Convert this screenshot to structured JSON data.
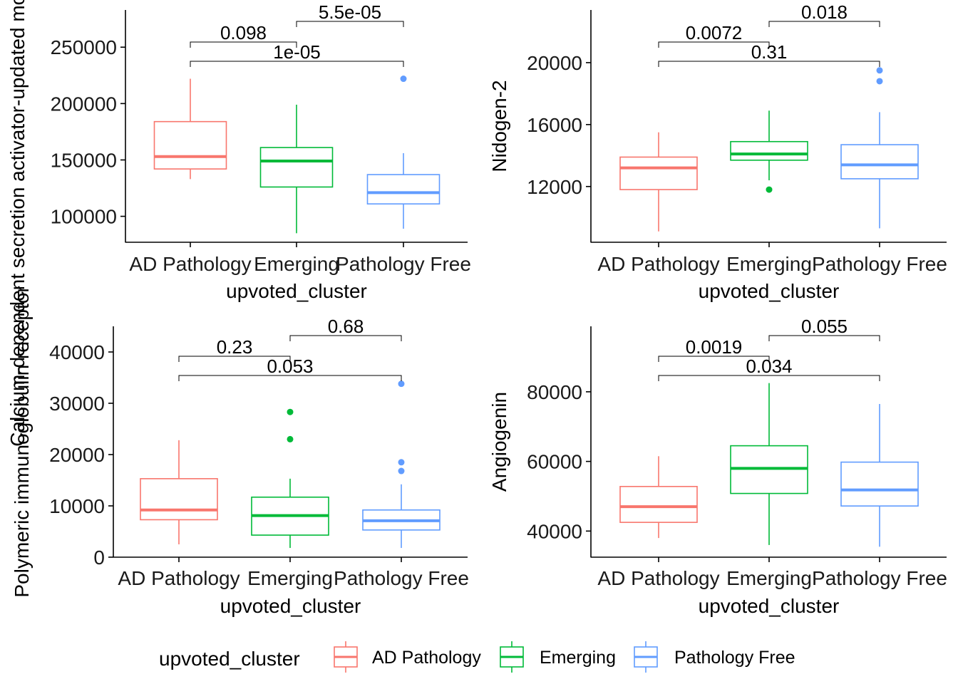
{
  "colors": {
    "AD Pathology": "#F8766D",
    "Emerging": "#00BA38",
    "Pathology Free": "#619CFF",
    "axis": "#000000"
  },
  "legend": {
    "title": "upvoted_cluster",
    "items": [
      "AD Pathology",
      "Emerging",
      "Pathology Free"
    ]
  },
  "chart_data": [
    {
      "type": "box",
      "xlabel": "upvoted_cluster",
      "ylabel": "Calcium-dependent secretion activator-updated modular calcium-binding",
      "categories": [
        "AD Pathology",
        "Emerging",
        "Pathology Free"
      ],
      "ylim": [
        77000,
        283000
      ],
      "yticks": [
        100000,
        150000,
        200000,
        250000
      ],
      "ytick_labels": [
        "100000",
        "150000",
        "200000",
        "250000"
      ],
      "boxes": [
        {
          "cat": "AD Pathology",
          "low": 133000,
          "q1": 142000,
          "median": 153000,
          "q3": 184000,
          "high": 222000,
          "outliers": []
        },
        {
          "cat": "Emerging",
          "low": 85000,
          "q1": 126000,
          "median": 149000,
          "q3": 161000,
          "high": 199000,
          "outliers": []
        },
        {
          "cat": "Pathology Free",
          "low": 89000,
          "q1": 111000,
          "median": 121000,
          "q3": 137000,
          "high": 156000,
          "outliers": [
            222000
          ]
        }
      ],
      "comparisons": [
        {
          "from": "AD Pathology",
          "to": "Emerging",
          "label": "0.098",
          "level": 2
        },
        {
          "from": "Emerging",
          "to": "Pathology Free",
          "label": "5.5e-05",
          "level": 3
        },
        {
          "from": "AD Pathology",
          "to": "Pathology Free",
          "label": "1e-05",
          "level": 1
        }
      ]
    },
    {
      "type": "box",
      "xlabel": "upvoted_cluster",
      "ylabel": "Nidogen-2",
      "categories": [
        "AD Pathology",
        "Emerging",
        "Pathology Free"
      ],
      "ylim": [
        8400,
        23400
      ],
      "yticks": [
        12000,
        16000,
        20000
      ],
      "ytick_labels": [
        "12000",
        "16000",
        "20000"
      ],
      "boxes": [
        {
          "cat": "AD Pathology",
          "low": 9100,
          "q1": 11800,
          "median": 13200,
          "q3": 13900,
          "high": 15500,
          "outliers": []
        },
        {
          "cat": "Emerging",
          "low": 12400,
          "q1": 13700,
          "median": 14100,
          "q3": 14900,
          "high": 16900,
          "outliers": [
            11800
          ]
        },
        {
          "cat": "Pathology Free",
          "low": 9300,
          "q1": 12500,
          "median": 13400,
          "q3": 14700,
          "high": 16800,
          "outliers": [
            18800,
            19500
          ]
        }
      ],
      "comparisons": [
        {
          "from": "AD Pathology",
          "to": "Emerging",
          "label": "0.0072",
          "level": 2
        },
        {
          "from": "Emerging",
          "to": "Pathology Free",
          "label": "0.018",
          "level": 3
        },
        {
          "from": "AD Pathology",
          "to": "Pathology Free",
          "label": "0.31",
          "level": 1
        }
      ]
    },
    {
      "type": "box",
      "xlabel": "upvoted_cluster",
      "ylabel": "Polymeric immunoglobulin receptor",
      "categories": [
        "AD Pathology",
        "Emerging",
        "Pathology Free"
      ],
      "ylim": [
        0,
        45000
      ],
      "yticks": [
        0,
        10000,
        20000,
        30000,
        40000
      ],
      "ytick_labels": [
        "0",
        "10000",
        "20000",
        "30000",
        "40000"
      ],
      "boxes": [
        {
          "cat": "AD Pathology",
          "low": 2500,
          "q1": 7300,
          "median": 9200,
          "q3": 15300,
          "high": 22800,
          "outliers": []
        },
        {
          "cat": "Emerging",
          "low": 1800,
          "q1": 4300,
          "median": 8100,
          "q3": 11700,
          "high": 15300,
          "outliers": [
            23000,
            28300
          ]
        },
        {
          "cat": "Pathology Free",
          "low": 1800,
          "q1": 5300,
          "median": 7100,
          "q3": 9200,
          "high": 14200,
          "outliers": [
            16800,
            18500,
            33800
          ]
        }
      ],
      "comparisons": [
        {
          "from": "AD Pathology",
          "to": "Emerging",
          "label": "0.23",
          "level": 2
        },
        {
          "from": "Emerging",
          "to": "Pathology Free",
          "label": "0.68",
          "level": 3
        },
        {
          "from": "AD Pathology",
          "to": "Pathology Free",
          "label": "0.053",
          "level": 1
        }
      ]
    },
    {
      "type": "box",
      "xlabel": "upvoted_cluster",
      "ylabel": "Angiogenin",
      "categories": [
        "AD Pathology",
        "Emerging",
        "Pathology Free"
      ],
      "ylim": [
        32500,
        98800
      ],
      "yticks": [
        40000,
        60000,
        80000
      ],
      "ytick_labels": [
        "40000",
        "60000",
        "80000"
      ],
      "boxes": [
        {
          "cat": "AD Pathology",
          "low": 38000,
          "q1": 42500,
          "median": 47000,
          "q3": 52800,
          "high": 61500,
          "outliers": []
        },
        {
          "cat": "Emerging",
          "low": 36000,
          "q1": 50800,
          "median": 58000,
          "q3": 64500,
          "high": 82500,
          "outliers": []
        },
        {
          "cat": "Pathology Free",
          "low": 35500,
          "q1": 47200,
          "median": 51800,
          "q3": 59800,
          "high": 76500,
          "outliers": []
        }
      ],
      "comparisons": [
        {
          "from": "AD Pathology",
          "to": "Emerging",
          "label": "0.0019",
          "level": 2
        },
        {
          "from": "Emerging",
          "to": "Pathology Free",
          "label": "0.055",
          "level": 3
        },
        {
          "from": "AD Pathology",
          "to": "Pathology Free",
          "label": "0.034",
          "level": 1
        }
      ]
    }
  ]
}
